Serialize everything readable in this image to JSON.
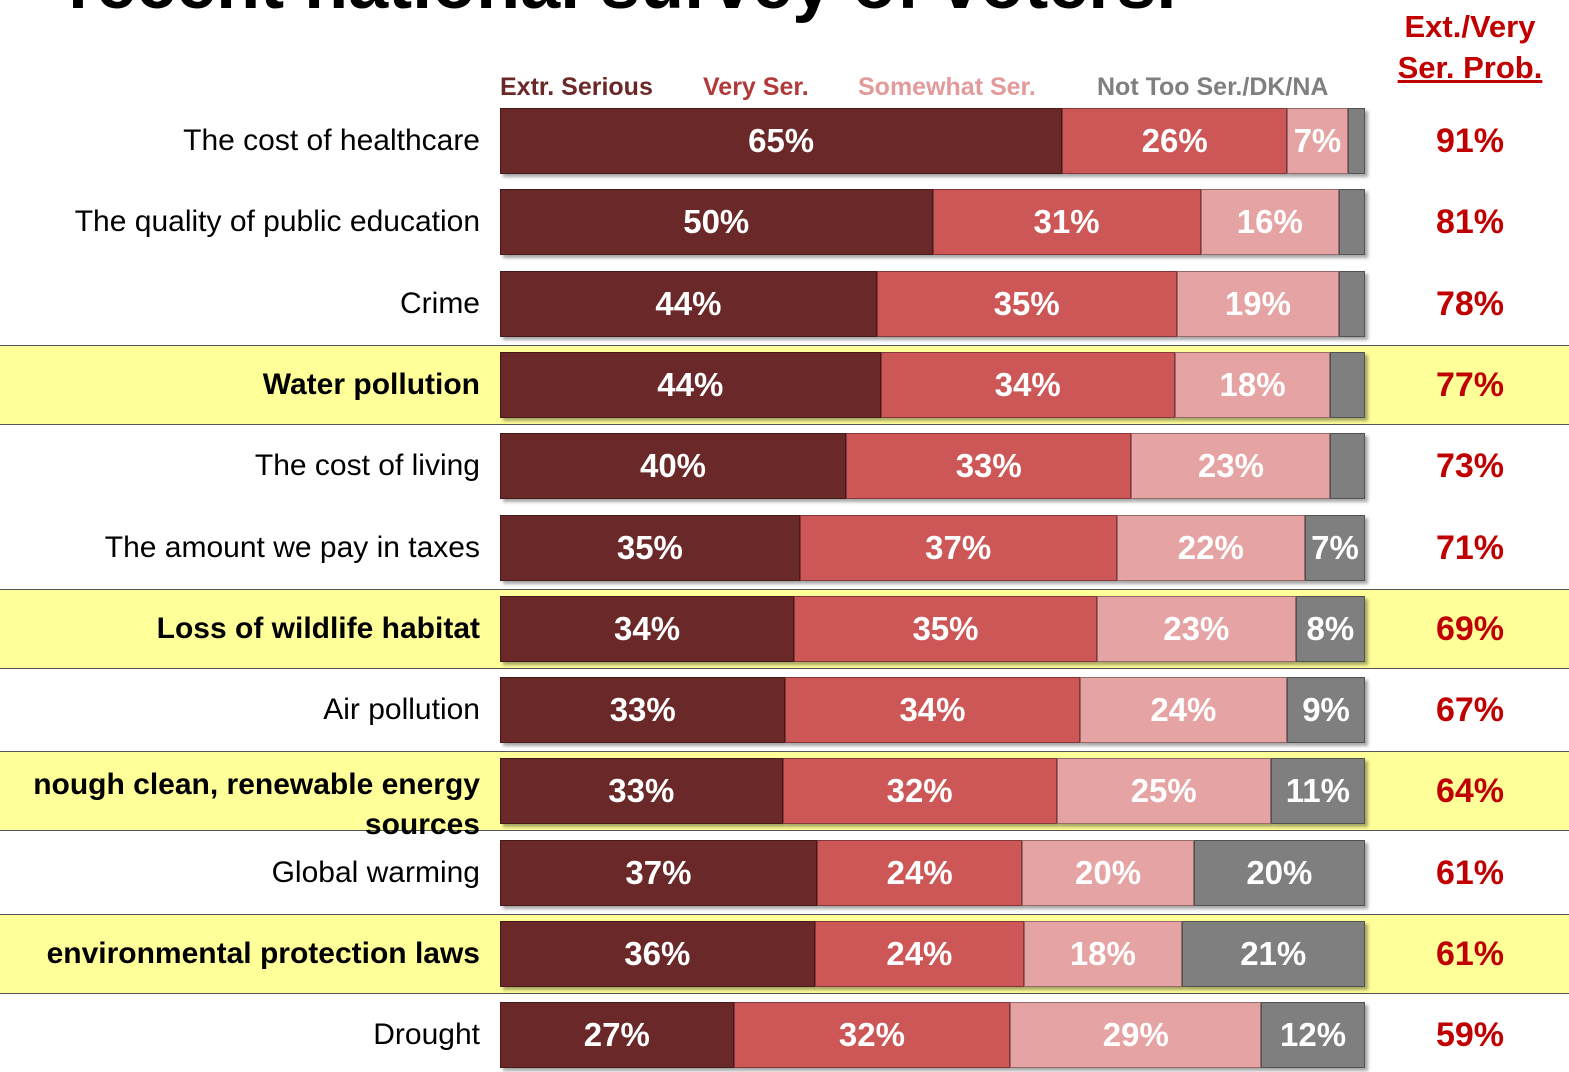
{
  "title": "recent national survey of voters.",
  "summary_header": {
    "line1": "Ext./Very",
    "line2": "Ser. Prob."
  },
  "colors": {
    "extr_serious": "#6b2828",
    "very_serious": "#cd5656",
    "somewhat_serious": "#e6a3a3",
    "not_too_serious": "#7f7f7f",
    "total_text": "#c00000",
    "highlight_band": "#ffff99"
  },
  "chart_data": {
    "type": "bar",
    "orientation": "horizontal",
    "stacked": true,
    "unit": "%",
    "xlim": [
      0,
      100
    ],
    "legend": [
      {
        "name": "Extr. Serious",
        "color": "#6b2828"
      },
      {
        "name": "Very Ser.",
        "color": "#b03a3a"
      },
      {
        "name": "Somewhat Ser.",
        "color": "#e29a9a"
      },
      {
        "name": "Not Too Ser./DK/NA",
        "color": "#7f7f7f"
      }
    ],
    "legend_placement": "top",
    "rows": [
      {
        "category": "The cost of healthcare",
        "highlight": false,
        "values": [
          65,
          26,
          7,
          2
        ],
        "labels": [
          "65%",
          "26%",
          "7%",
          ""
        ],
        "total": "91%"
      },
      {
        "category": "The quality of public education",
        "highlight": false,
        "values": [
          50,
          31,
          16,
          3
        ],
        "labels": [
          "50%",
          "31%",
          "16%",
          ""
        ],
        "total": "81%"
      },
      {
        "category": "Crime",
        "highlight": false,
        "values": [
          44,
          35,
          19,
          3
        ],
        "labels": [
          "44%",
          "35%",
          "19%",
          ""
        ],
        "total": "78%"
      },
      {
        "category": "Water pollution",
        "highlight": true,
        "values": [
          44,
          34,
          18,
          4
        ],
        "labels": [
          "44%",
          "34%",
          "18%",
          ""
        ],
        "total": "77%"
      },
      {
        "category": "The cost of living",
        "highlight": false,
        "values": [
          40,
          33,
          23,
          4
        ],
        "labels": [
          "40%",
          "33%",
          "23%",
          ""
        ],
        "total": "73%"
      },
      {
        "category": "The amount we pay in taxes",
        "highlight": false,
        "values": [
          35,
          37,
          22,
          7
        ],
        "labels": [
          "35%",
          "37%",
          "22%",
          "7%"
        ],
        "total": "71%"
      },
      {
        "category": "Loss of wildlife habitat",
        "highlight": true,
        "values": [
          34,
          35,
          23,
          8
        ],
        "labels": [
          "34%",
          "35%",
          "23%",
          "8%"
        ],
        "total": "69%"
      },
      {
        "category": "Air pollution",
        "highlight": false,
        "values": [
          33,
          34,
          24,
          9
        ],
        "labels": [
          "33%",
          "34%",
          "24%",
          "9%"
        ],
        "total": "67%"
      },
      {
        "category": "nough clean, renewable energy sources",
        "highlight": true,
        "values": [
          33,
          32,
          25,
          11
        ],
        "labels": [
          "33%",
          "32%",
          "25%",
          "11%"
        ],
        "total": "64%"
      },
      {
        "category": "Global warming",
        "highlight": false,
        "values": [
          37,
          24,
          20,
          20
        ],
        "labels": [
          "37%",
          "24%",
          "20%",
          "20%"
        ],
        "total": "61%"
      },
      {
        "category": "environmental protection laws",
        "highlight": true,
        "values": [
          36,
          24,
          18,
          21
        ],
        "labels": [
          "36%",
          "24%",
          "18%",
          "21%"
        ],
        "total": "61%"
      },
      {
        "category": "Drought",
        "highlight": false,
        "values": [
          27,
          32,
          29,
          12
        ],
        "labels": [
          "27%",
          "32%",
          "29%",
          "12%"
        ],
        "total": "59%"
      }
    ]
  }
}
